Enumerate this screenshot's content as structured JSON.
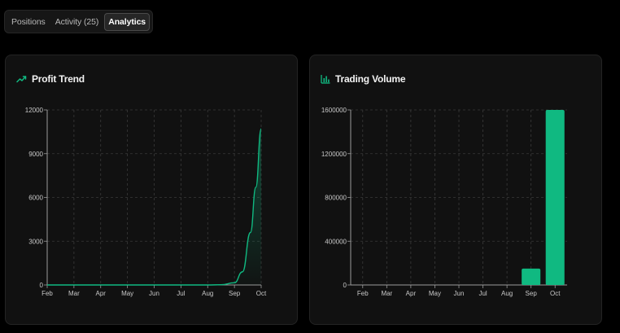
{
  "tabs": [
    {
      "label": "Positions",
      "active": false
    },
    {
      "label": "Activity (25)",
      "active": false
    },
    {
      "label": "Analytics",
      "active": true
    }
  ],
  "colors": {
    "accent": "#10b981",
    "background": "#000000",
    "card": "#111111"
  },
  "profit_card": {
    "title": "Profit Trend",
    "icon": "trending-up-icon"
  },
  "volume_card": {
    "title": "Trading Volume",
    "icon": "bar-chart-icon"
  },
  "chart_data": [
    {
      "type": "area",
      "title": "Profit Trend",
      "xlabel": "",
      "ylabel": "",
      "categories": [
        "Feb",
        "Mar",
        "Apr",
        "May",
        "Jun",
        "Jul",
        "Aug",
        "Sep",
        "Oct"
      ],
      "y_ticks": [
        "0",
        "3000",
        "6000",
        "9000",
        "12000"
      ],
      "ylim": [
        0,
        12000
      ],
      "grid": true,
      "curve_points": [
        {
          "x": 0,
          "y": 0
        },
        {
          "x": 1,
          "y": 0
        },
        {
          "x": 2,
          "y": 0
        },
        {
          "x": 3,
          "y": 0
        },
        {
          "x": 4,
          "y": 0
        },
        {
          "x": 5,
          "y": 0
        },
        {
          "x": 6,
          "y": 0
        },
        {
          "x": 6.5,
          "y": 15
        },
        {
          "x": 7,
          "y": 150
        },
        {
          "x": 7.3,
          "y": 900
        },
        {
          "x": 7.6,
          "y": 3600
        },
        {
          "x": 7.8,
          "y": 6700
        },
        {
          "x": 8,
          "y": 10700
        }
      ]
    },
    {
      "type": "bar",
      "title": "Trading Volume",
      "xlabel": "",
      "ylabel": "",
      "categories": [
        "Feb",
        "Mar",
        "Apr",
        "May",
        "Jun",
        "Jul",
        "Aug",
        "Sep",
        "Oct"
      ],
      "values": [
        0,
        0,
        0,
        0,
        0,
        0,
        0,
        150000,
        1600000
      ],
      "y_ticks": [
        "0",
        "400000",
        "800000",
        "1200000",
        "1600000"
      ],
      "ylim": [
        0,
        1600000
      ],
      "grid": true
    }
  ]
}
